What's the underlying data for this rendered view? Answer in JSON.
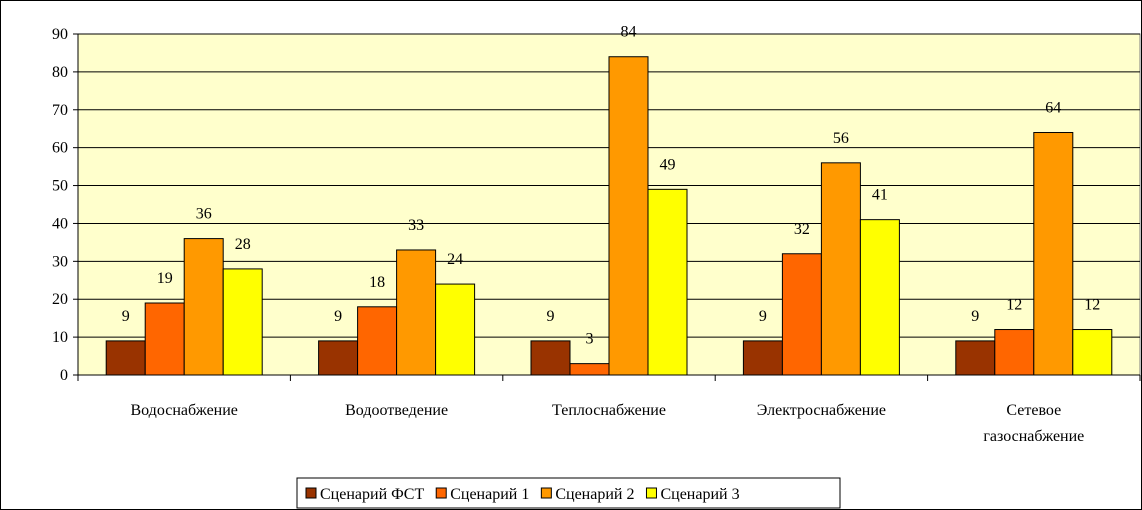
{
  "chart_data": {
    "type": "bar",
    "categories": [
      "Водоснабжение",
      "Водоотведение",
      "Теплоснабжение",
      "Электроснабжение",
      "Сетевое газоснабжение"
    ],
    "series": [
      {
        "name": "Сценарий ФСТ",
        "color": "#993300",
        "values": [
          9,
          9,
          9,
          9,
          9
        ]
      },
      {
        "name": "Сценарий 1",
        "color": "#FF6600",
        "values": [
          19,
          18,
          3,
          32,
          12
        ]
      },
      {
        "name": "Сценарий 2",
        "color": "#FF9900",
        "values": [
          36,
          33,
          84,
          56,
          64
        ]
      },
      {
        "name": "Сценарий 3",
        "color": "#FFFF00",
        "values": [
          28,
          24,
          49,
          41,
          12
        ]
      }
    ],
    "ylim": [
      0,
      90
    ],
    "yticks": [
      0,
      10,
      20,
      30,
      40,
      50,
      60,
      70,
      80,
      90
    ],
    "grid": true,
    "legend": "bottom",
    "plot_background": "#FFFFCC"
  }
}
